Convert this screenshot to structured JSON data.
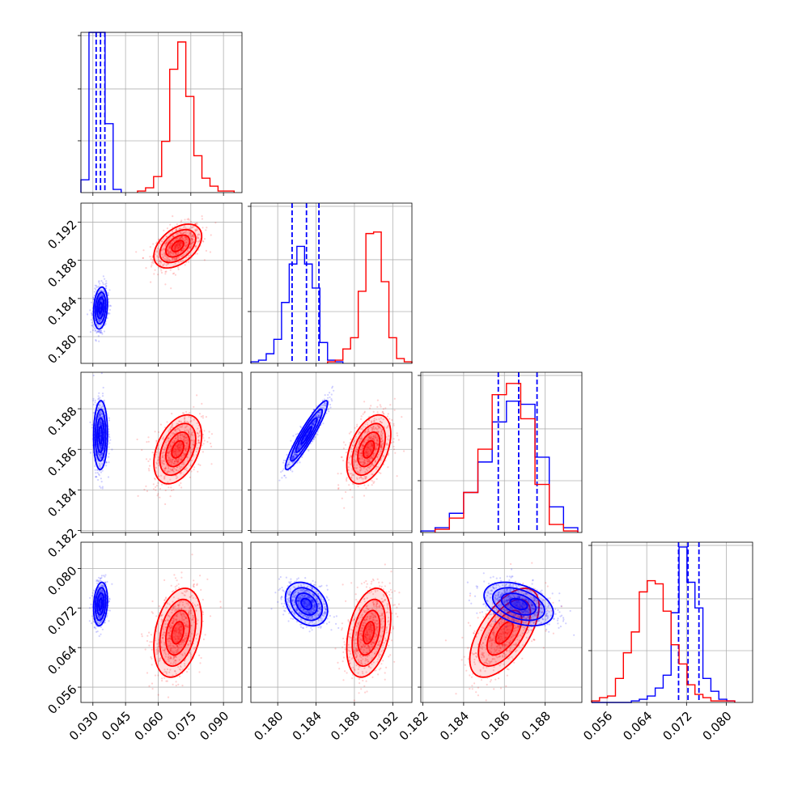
{
  "figure": {
    "kind": "corner-plot"
  },
  "colors": {
    "blue": "#0000ff",
    "red": "#ff0000",
    "grid": "#b0b0b0"
  },
  "chart_data": {
    "type": "corner",
    "parameters": [
      {
        "ticks": [
          "0.030",
          "0.045",
          "0.060",
          "0.075",
          "0.090"
        ],
        "tick_values": [
          0.03,
          0.045,
          0.06,
          0.075,
          0.09
        ],
        "range": [
          0.0245,
          0.0985
        ]
      },
      {
        "ticks": [
          "0.180",
          "0.184",
          "0.188",
          "0.192"
        ],
        "tick_values": [
          0.18,
          0.184,
          0.188,
          0.192
        ],
        "range": [
          0.1772,
          0.194
        ]
      },
      {
        "ticks": [
          "0.182",
          "0.184",
          "0.186",
          "0.188"
        ],
        "tick_values": [
          0.182,
          0.184,
          0.186,
          0.188
        ],
        "range": [
          0.1819,
          0.1898
        ]
      },
      {
        "ticks": [
          "0.056",
          "0.064",
          "0.072",
          "0.080"
        ],
        "tick_values": [
          0.056,
          0.064,
          0.072,
          0.08
        ],
        "range": [
          0.0529,
          0.0853
        ]
      }
    ],
    "series": [
      {
        "color_key": "blue",
        "centers": [
          0.0335,
          0.183,
          0.1867,
          0.0728
        ],
        "sigmas": [
          0.0016,
          0.0011,
          0.00085,
          0.0022
        ],
        "correlations": [
          [
            1,
            0.2,
            0.05,
            0.2
          ],
          [
            0.2,
            1,
            0.93,
            -0.3
          ],
          [
            0.05,
            0.93,
            1,
            -0.4
          ],
          [
            0.2,
            -0.3,
            -0.4,
            1
          ]
        ],
        "quantile_lines": [
          [
            0.0315,
            0.0335,
            0.0355
          ],
          [
            0.1815,
            0.183,
            0.1843
          ],
          [
            0.1857,
            0.1867,
            0.1876
          ],
          [
            0.0704,
            0.0723,
            0.0745
          ]
        ],
        "histograms": [
          {
            "edges": [
              0.0245,
              0.0282,
              0.0319,
              0.0356,
              0.0393,
              0.043
            ],
            "counts": [
              0.08,
              1.0,
              1.0,
              0.43,
              0.02
            ]
          },
          {
            "edges": [
              0.1772,
              0.178,
              0.1788,
              0.1796,
              0.1804,
              0.1812,
              0.182,
              0.1828,
              0.1836,
              0.1844,
              0.1852,
              0.186,
              0.1868
            ],
            "counts": [
              0.01,
              0.02,
              0.06,
              0.15,
              0.38,
              0.62,
              0.73,
              0.62,
              0.47,
              0.13,
              0.02,
              0.01
            ]
          },
          {
            "edges": [
              0.1819,
              0.1826,
              0.1833,
              0.184,
              0.1847,
              0.1854,
              0.1861,
              0.1868,
              0.1875,
              0.1882,
              0.1889,
              0.1896
            ],
            "counts": [
              0.01,
              0.03,
              0.12,
              0.25,
              0.44,
              0.69,
              0.82,
              0.8,
              0.47,
              0.16,
              0.03
            ]
          },
          {
            "edges": [
              0.0529,
              0.0545,
              0.0561,
              0.0577,
              0.0593,
              0.0609,
              0.0625,
              0.0641,
              0.0657,
              0.0673,
              0.0689,
              0.0705,
              0.0721,
              0.0737,
              0.0753,
              0.0769,
              0.0785,
              0.0801,
              0.0817
            ],
            "counts": [
              0,
              0,
              0,
              0,
              0,
              0.01,
              0.02,
              0.04,
              0.09,
              0.17,
              0.56,
              0.97,
              0.75,
              0.59,
              0.15,
              0.07,
              0.02,
              0.01
            ]
          }
        ]
      },
      {
        "color_key": "red",
        "centers": [
          0.069,
          0.1895,
          0.186,
          0.067
        ],
        "sigmas": [
          0.0055,
          0.00115,
          0.00085,
          0.0045
        ],
        "correlations": [
          [
            1,
            0.45,
            0.4,
            0.3
          ],
          [
            0.45,
            1,
            0.45,
            0.35
          ],
          [
            0.4,
            0.45,
            1,
            0.6
          ],
          [
            0.3,
            0.35,
            0.6,
            1
          ]
        ],
        "quantile_lines": [],
        "histograms": [
          {
            "edges": [
              0.0505,
              0.0542,
              0.0579,
              0.0616,
              0.0653,
              0.069,
              0.0727,
              0.0764,
              0.0801,
              0.0838,
              0.0875,
              0.0912,
              0.0949
            ],
            "counts": [
              0.01,
              0.03,
              0.1,
              0.32,
              0.77,
              0.94,
              0.6,
              0.23,
              0.09,
              0.04,
              0.01,
              0.01
            ]
          },
          {
            "edges": [
              0.1852,
              0.186,
              0.1868,
              0.1876,
              0.1884,
              0.1892,
              0.19,
              0.1908,
              0.1916,
              0.1924,
              0.1932,
              0.194
            ],
            "counts": [
              0.01,
              0.02,
              0.09,
              0.16,
              0.45,
              0.81,
              0.82,
              0.51,
              0.16,
              0.03,
              0.01
            ]
          },
          {
            "edges": [
              0.1826,
              0.1833,
              0.184,
              0.1847,
              0.1854,
              0.1861,
              0.1868,
              0.1875,
              0.1882,
              0.1889,
              0.1896
            ],
            "counts": [
              0.02,
              0.09,
              0.25,
              0.52,
              0.86,
              0.93,
              0.71,
              0.3,
              0.05,
              0.01
            ]
          },
          {
            "edges": [
              0.0529,
              0.0545,
              0.0561,
              0.0577,
              0.0593,
              0.0609,
              0.0625,
              0.0641,
              0.0657,
              0.0673,
              0.0689,
              0.0705,
              0.0721,
              0.0737,
              0.0753,
              0.0769,
              0.0785,
              0.0801,
              0.0817
            ],
            "counts": [
              0.01,
              0.03,
              0.04,
              0.15,
              0.31,
              0.44,
              0.69,
              0.76,
              0.74,
              0.57,
              0.36,
              0.24,
              0.11,
              0.05,
              0.03,
              0.01,
              0.01,
              0.01
            ]
          }
        ]
      }
    ],
    "contour_levels_sigma": [
      0.5,
      1.0,
      1.5,
      2.0
    ],
    "grid": true,
    "tick_label_rotation": 45
  }
}
